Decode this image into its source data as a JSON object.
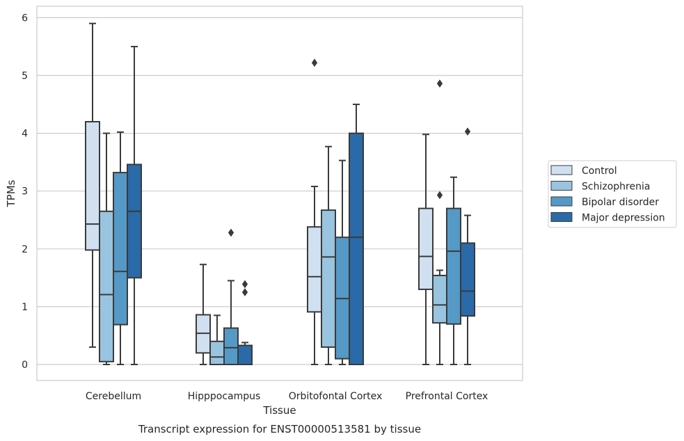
{
  "chart_data": {
    "type": "box",
    "title": "Transcript expression for ENST00000513581 by tissue",
    "xlabel": "Tissue",
    "ylabel": "TPMs",
    "ylim": [
      -0.28,
      6.2
    ],
    "yticks": [
      0,
      1,
      2,
      3,
      4,
      5,
      6
    ],
    "grid": true,
    "legend_position": "right",
    "categories": [
      "Cerebellum",
      "Hipppocampus",
      "Orbitofontal Cortex",
      "Prefrontal Cortex"
    ],
    "series": [
      {
        "name": "Control",
        "color": "#d0e0f1",
        "boxes": [
          {
            "whislo": 0.3,
            "q1": 1.98,
            "med": 2.43,
            "q3": 4.2,
            "whishi": 5.9,
            "fliers": []
          },
          {
            "whislo": 0.0,
            "q1": 0.2,
            "med": 0.54,
            "q3": 0.86,
            "whishi": 1.73,
            "fliers": []
          },
          {
            "whislo": 0.0,
            "q1": 0.91,
            "med": 1.52,
            "q3": 2.38,
            "whishi": 3.08,
            "fliers": [
              5.22
            ]
          },
          {
            "whislo": 0.0,
            "q1": 1.3,
            "med": 1.87,
            "q3": 2.7,
            "whishi": 3.98,
            "fliers": []
          }
        ]
      },
      {
        "name": "Schizophrenia",
        "color": "#99c4df",
        "boxes": [
          {
            "whislo": 0.0,
            "q1": 0.05,
            "med": 1.21,
            "q3": 2.65,
            "whishi": 4.0,
            "fliers": []
          },
          {
            "whislo": 0.0,
            "q1": 0.0,
            "med": 0.13,
            "q3": 0.4,
            "whishi": 0.85,
            "fliers": []
          },
          {
            "whislo": 0.0,
            "q1": 0.3,
            "med": 1.86,
            "q3": 2.67,
            "whishi": 3.77,
            "fliers": []
          },
          {
            "whislo": 0.0,
            "q1": 0.72,
            "med": 1.03,
            "q3": 1.54,
            "whishi": 1.63,
            "fliers": [
              2.93,
              4.86
            ]
          }
        ]
      },
      {
        "name": "Bipolar disorder",
        "color": "#5599c7",
        "boxes": [
          {
            "whislo": 0.0,
            "q1": 0.69,
            "med": 1.61,
            "q3": 3.32,
            "whishi": 4.02,
            "fliers": []
          },
          {
            "whislo": 0.0,
            "q1": 0.0,
            "med": 0.29,
            "q3": 0.63,
            "whishi": 1.45,
            "fliers": [
              2.28
            ]
          },
          {
            "whislo": 0.0,
            "q1": 0.1,
            "med": 1.14,
            "q3": 2.2,
            "whishi": 3.53,
            "fliers": []
          },
          {
            "whislo": 0.0,
            "q1": 0.7,
            "med": 1.96,
            "q3": 2.7,
            "whishi": 3.24,
            "fliers": []
          }
        ]
      },
      {
        "name": "Major depression",
        "color": "#2a6aa8",
        "boxes": [
          {
            "whislo": 0.0,
            "q1": 1.5,
            "med": 2.65,
            "q3": 3.46,
            "whishi": 5.5,
            "fliers": []
          },
          {
            "whislo": 0.0,
            "q1": 0.0,
            "med": 0.0,
            "q3": 0.33,
            "whishi": 0.38,
            "fliers": [
              1.25,
              1.39
            ]
          },
          {
            "whislo": 0.0,
            "q1": 0.0,
            "med": 2.2,
            "q3": 4.0,
            "whishi": 4.5,
            "fliers": []
          },
          {
            "whislo": 0.0,
            "q1": 0.84,
            "med": 1.27,
            "q3": 2.1,
            "whishi": 2.58,
            "fliers": [
              4.03
            ]
          }
        ]
      }
    ]
  }
}
